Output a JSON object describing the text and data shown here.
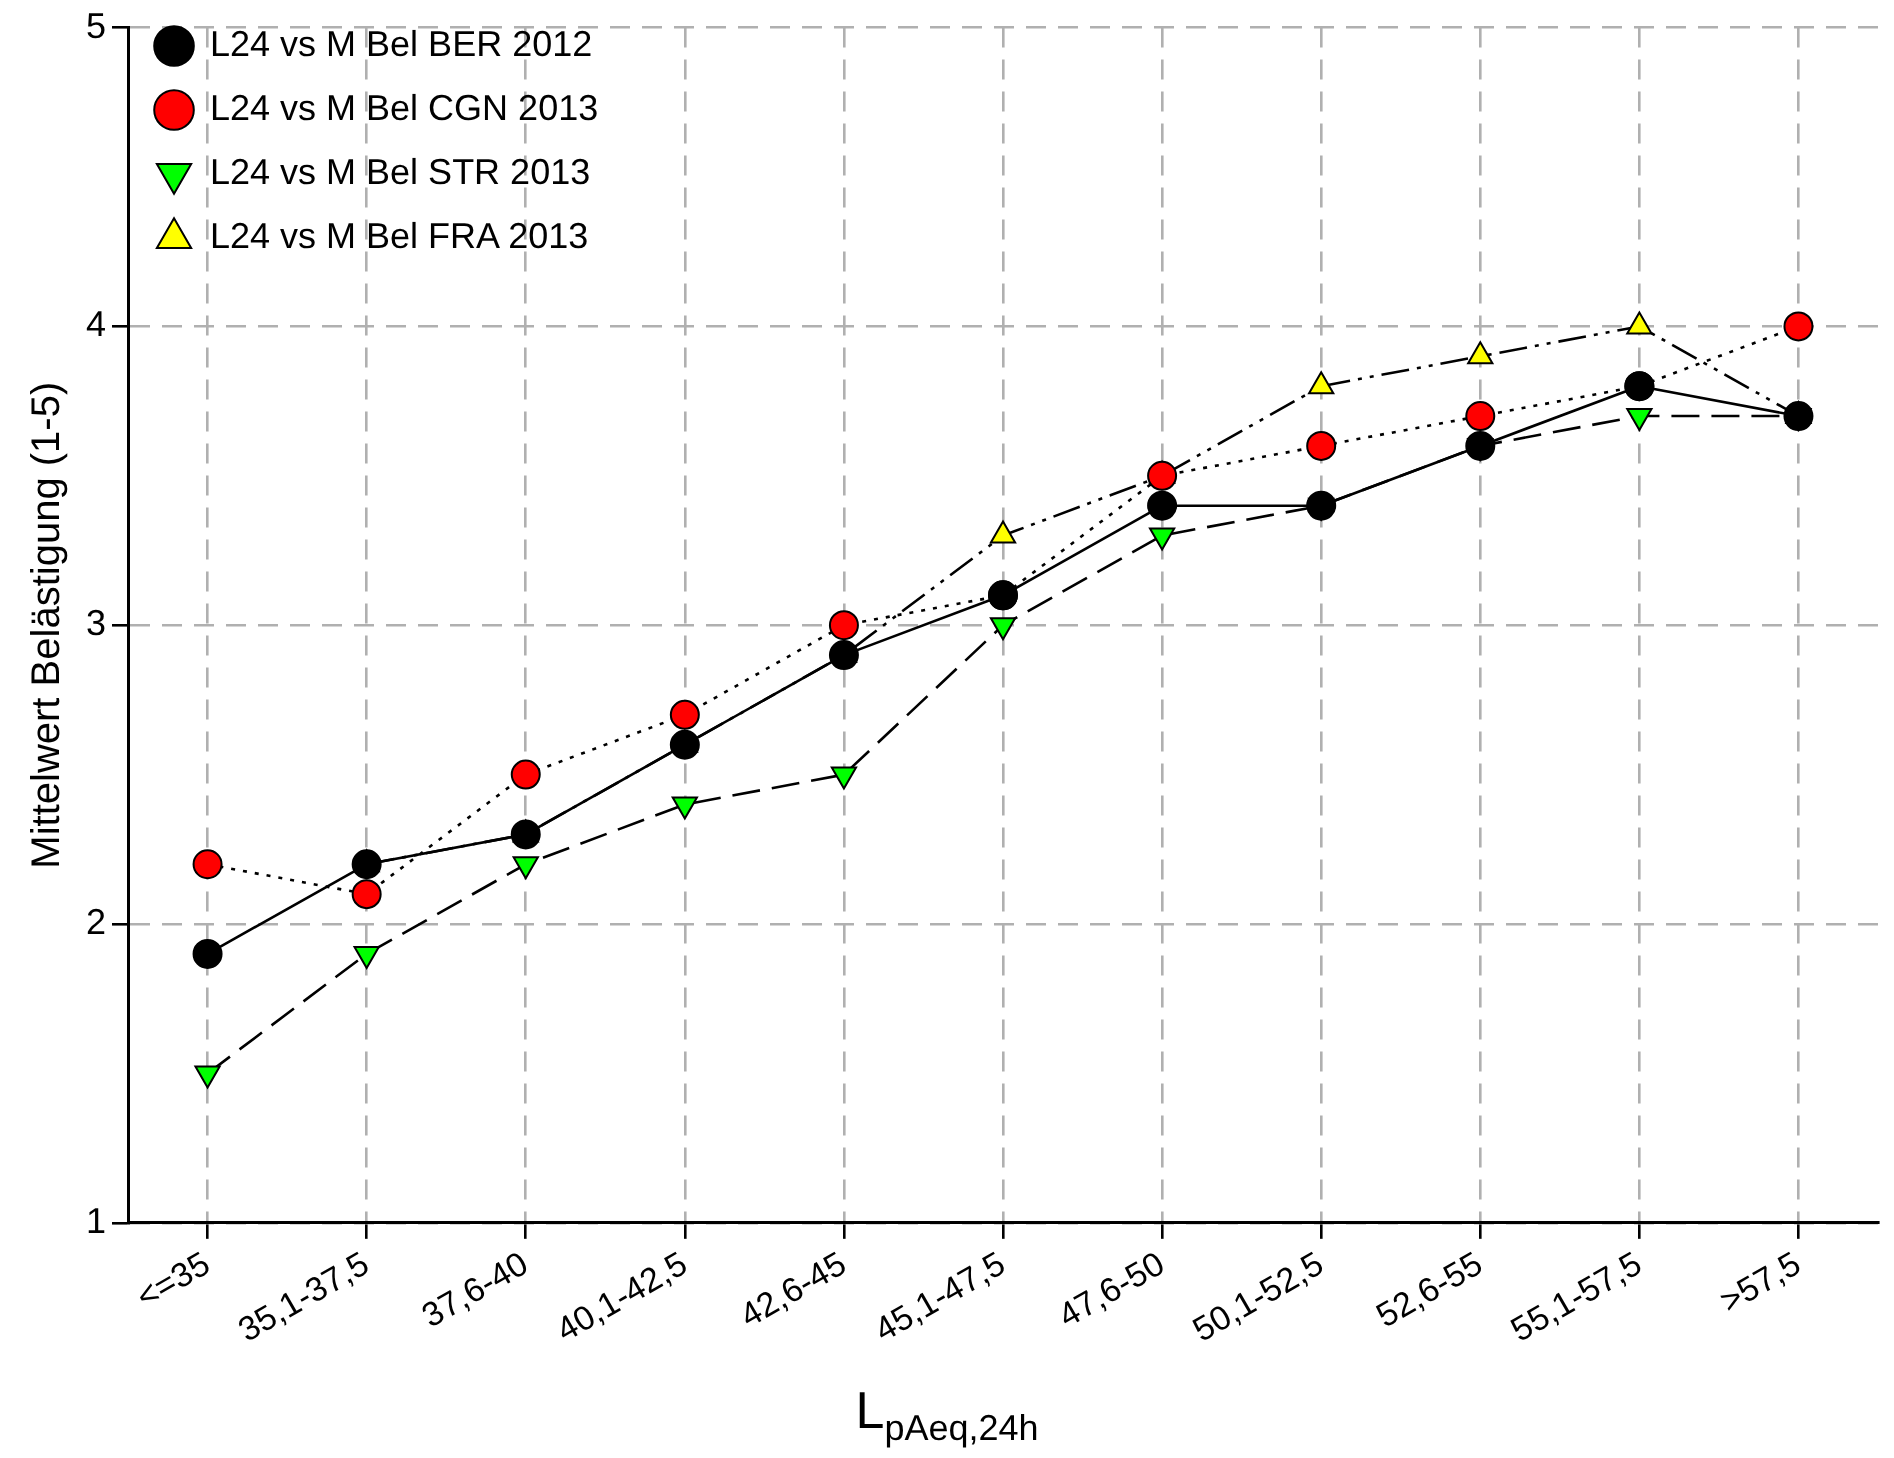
{
  "chart_data": {
    "type": "line",
    "xlabel": "L$_{pAeq,24h}$",
    "ylabel": "Mittelwert Belästigung (1-5)",
    "categories": [
      "<=35",
      "35,1-37,5",
      "37,6-40",
      "40,1-42,5",
      "42,6-45",
      "45,1-47,5",
      "47,6-50",
      "50,1-52,5",
      "52,6-55",
      "55,1-57,5",
      ">57,5"
    ],
    "series": [
      {
        "name": "L24 vs M Bel BER 2012",
        "color": "#000000",
        "marker": "circle",
        "line_style": "solid",
        "values": [
          1.9,
          2.2,
          2.3,
          2.6,
          2.9,
          3.1,
          3.4,
          3.4,
          3.6,
          3.8,
          3.7
        ]
      },
      {
        "name": "L24 vs M Bel CGN 2013",
        "color": "#ff0000",
        "marker": "circle",
        "line_style": "dotted",
        "values": [
          2.2,
          2.1,
          2.5,
          2.7,
          3.0,
          3.1,
          3.5,
          3.6,
          3.7,
          3.8,
          4.0
        ]
      },
      {
        "name": "L24 vs M Bel STR 2013",
        "color": "#00ff00",
        "marker": "triangle-down",
        "line_style": "dashed",
        "values": [
          1.5,
          1.9,
          2.2,
          2.4,
          2.5,
          3.0,
          3.3,
          3.4,
          3.6,
          3.7,
          3.7
        ]
      },
      {
        "name": "L24 vs M Bel FRA 2013",
        "color": "#ffff00",
        "marker": "triangle",
        "line_style": "dashdot",
        "values": [
          null,
          2.2,
          2.3,
          2.6,
          2.9,
          3.3,
          3.5,
          3.8,
          3.9,
          4.0,
          3.7
        ]
      }
    ],
    "ylim": [
      1,
      5
    ],
    "yticks": [
      1,
      2,
      3,
      4,
      5
    ],
    "grid": true,
    "legend": "top left"
  }
}
